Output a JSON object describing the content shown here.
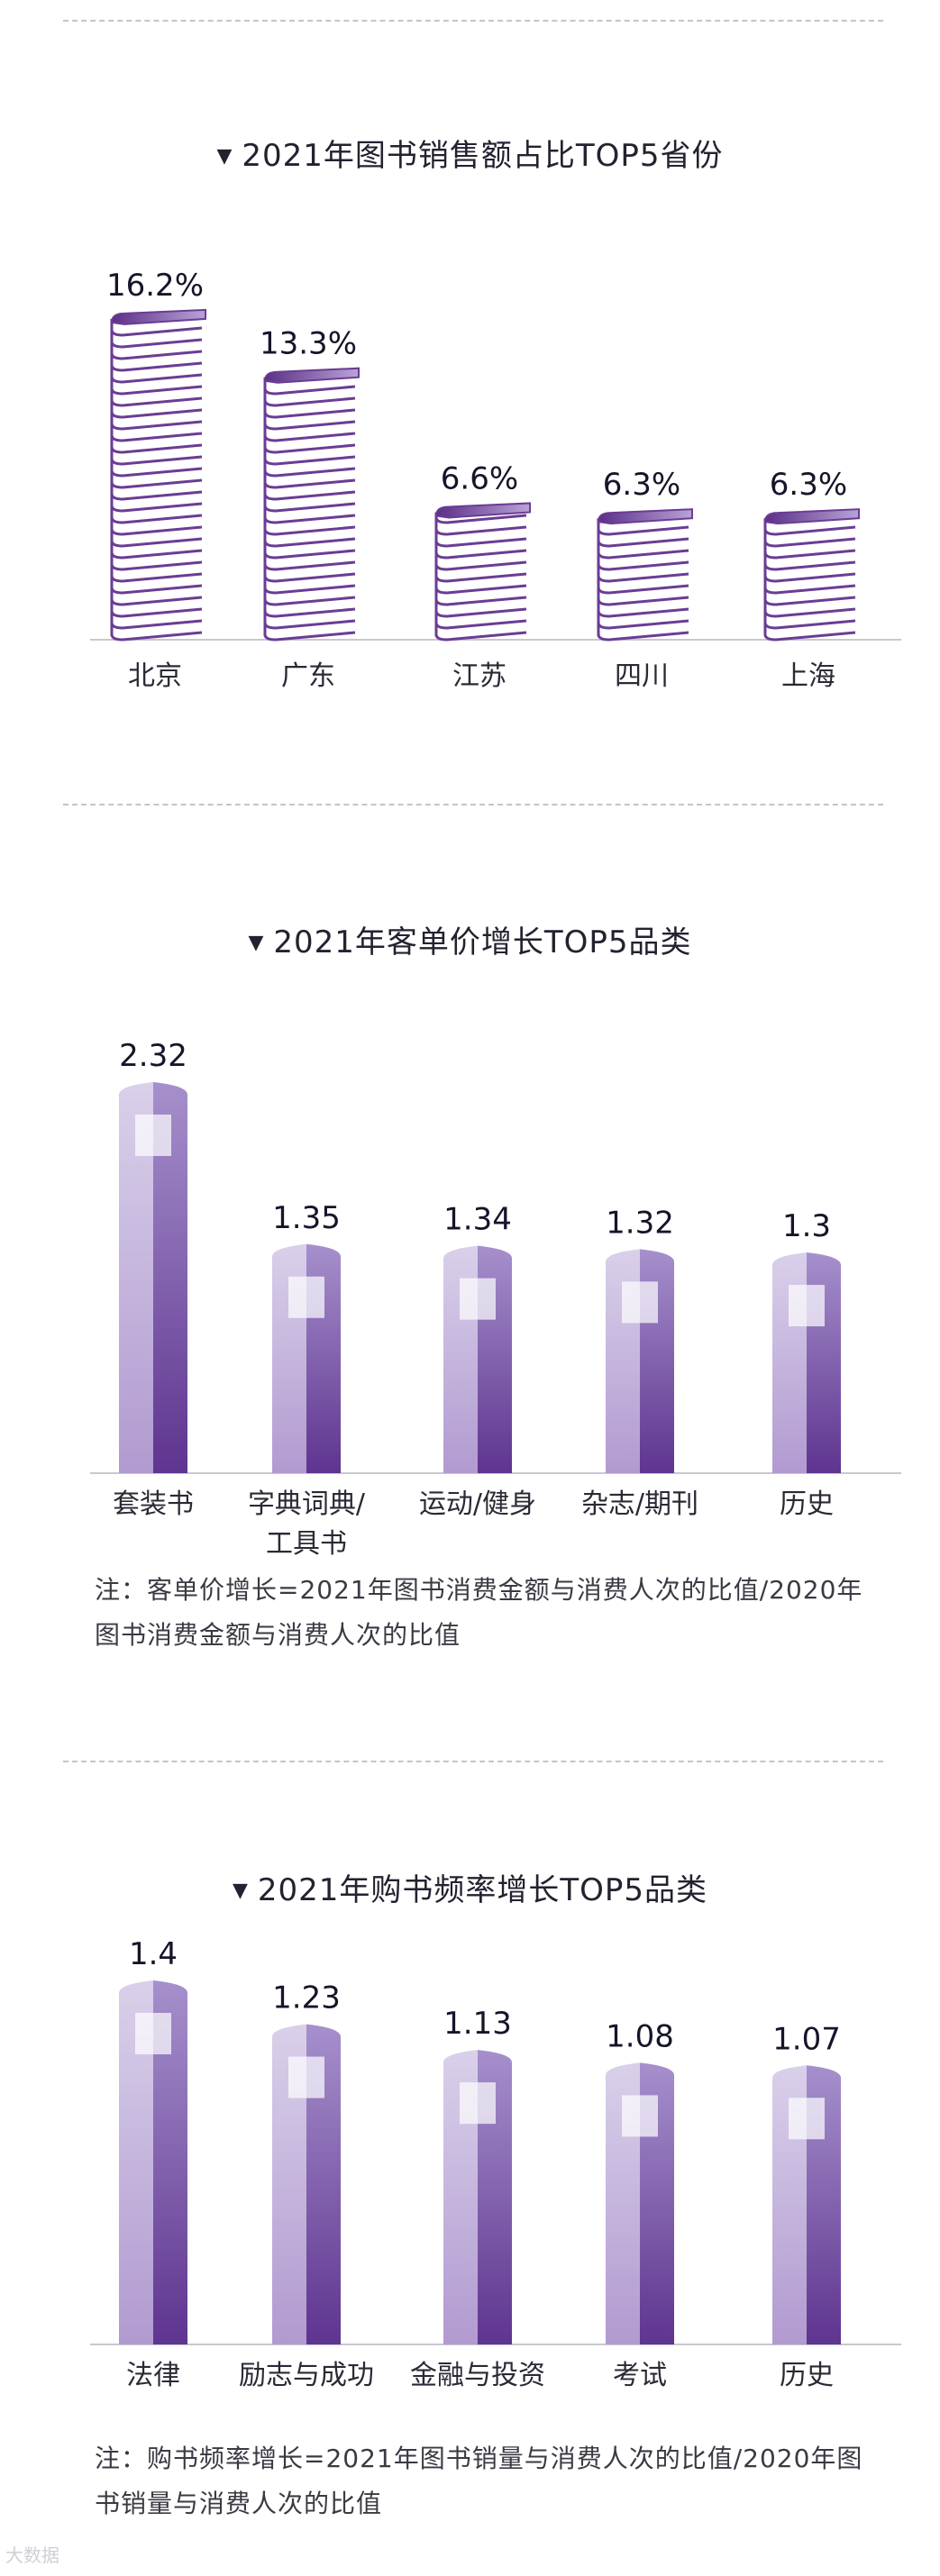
{
  "charts": [
    {
      "title": "2021年图书销售额占比TOP5省份",
      "chart_data": {
        "type": "bar",
        "categories": [
          "北京",
          "广东",
          "江苏",
          "四川",
          "上海"
        ],
        "values": [
          16.2,
          13.3,
          6.6,
          6.3,
          6.3
        ],
        "labels": [
          "16.2%",
          "13.3%",
          "6.6%",
          "6.3%",
          "6.3%"
        ],
        "unit": "%"
      }
    },
    {
      "title": "2021年客单价增长TOP5品类",
      "chart_data": {
        "type": "bar",
        "categories": [
          "套装书",
          "字典词典/\n工具书",
          "运动/健身",
          "杂志/期刊",
          "历史"
        ],
        "values": [
          2.32,
          1.35,
          1.34,
          1.32,
          1.3
        ],
        "labels": [
          "2.32",
          "1.35",
          "1.34",
          "1.32",
          "1.3"
        ]
      },
      "note": "注：客单价增长=2021年图书消费金额与消费人次的比值/2020年图书消费金额与消费人次的比值"
    },
    {
      "title": "2021年购书频率增长TOP5品类",
      "chart_data": {
        "type": "bar",
        "categories": [
          "法律",
          "励志与成功",
          "金融与投资",
          "考试",
          "历史"
        ],
        "values": [
          1.4,
          1.23,
          1.13,
          1.08,
          1.07
        ],
        "labels": [
          "1.4",
          "1.23",
          "1.13",
          "1.08",
          "1.07"
        ]
      },
      "note": "注：购书频率增长=2021年图书销量与消费人次的比值/2020年图书销量与消费人次的比值"
    }
  ],
  "watermark": "大数据",
  "colors": {
    "bookStroke": "#6a3d94",
    "bookTop": "#8a6bb8",
    "barLight": "#cbbfe0",
    "barDark": "#6a3f9c",
    "axis": "#c8c8d0"
  }
}
